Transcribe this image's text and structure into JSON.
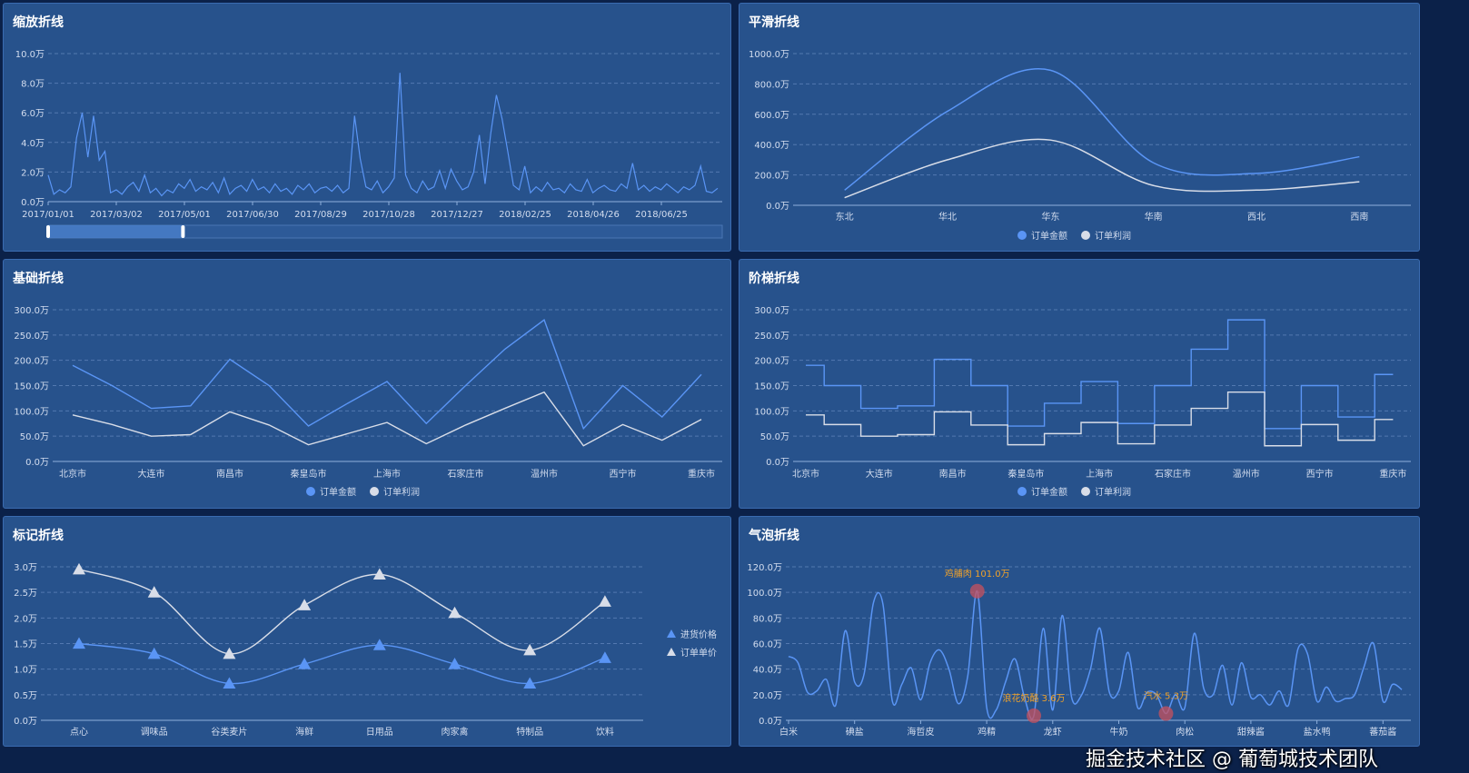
{
  "colors": {
    "primary": "#5a95f5",
    "secondary": "#d8dde8",
    "mark_point": "#c8525e",
    "mark_label": "#f0a22a",
    "panel": "#27528c",
    "background": "#0b2149"
  },
  "watermark": "掘金技术社区 @ 葡萄城技术团队",
  "chart_data": [
    {
      "type": "line",
      "title": "缩放折线",
      "yticks": [
        "0.0万",
        "2.0万",
        "4.0万",
        "6.0万",
        "8.0万",
        "10.0万"
      ],
      "ylim": [
        0,
        10
      ],
      "unit": "万",
      "x_start": "2017/01/01",
      "x_step_days": 5,
      "xticks": [
        "2017/01/01",
        "2017/03/02",
        "2017/05/01",
        "2017/06/30",
        "2017/08/29",
        "2017/10/28",
        "2017/12/27",
        "2018/02/25",
        "2018/04/26",
        "2018/06/25"
      ],
      "values": [
        1.8,
        0.5,
        0.8,
        0.6,
        1.0,
        4.3,
        6.0,
        3.0,
        5.8,
        2.8,
        3.4,
        0.6,
        0.8,
        0.5,
        1.0,
        1.3,
        0.7,
        1.8,
        0.6,
        0.9,
        0.4,
        0.8,
        0.6,
        1.2,
        0.9,
        1.5,
        0.7,
        1.0,
        0.8,
        1.3,
        0.6,
        1.6,
        0.5,
        0.9,
        1.1,
        0.7,
        1.5,
        0.8,
        1.0,
        0.6,
        1.2,
        0.7,
        0.9,
        0.5,
        1.1,
        0.8,
        1.2,
        0.6,
        0.9,
        1.0,
        0.7,
        1.1,
        0.6,
        0.9,
        5.8,
        2.9,
        1.0,
        0.8,
        1.4,
        0.6,
        1.0,
        1.6,
        8.7,
        1.8,
        0.9,
        0.6,
        1.4,
        0.8,
        1.0,
        2.1,
        0.9,
        2.2,
        1.4,
        0.8,
        1.0,
        2.0,
        4.5,
        1.2,
        4.6,
        7.2,
        5.6,
        3.4,
        1.1,
        0.8,
        2.4,
        0.6,
        1.0,
        0.7,
        1.3,
        0.8,
        0.9,
        0.6,
        1.2,
        0.8,
        0.7,
        1.5,
        0.6,
        0.9,
        1.1,
        0.8,
        0.7,
        1.2,
        0.9,
        2.6,
        0.8,
        1.1,
        0.7,
        1.0,
        0.8,
        1.2,
        0.9,
        0.6,
        1.0,
        0.8,
        1.1,
        2.4,
        0.7,
        0.6,
        0.9
      ],
      "data_zoom": {
        "start_percent": 0,
        "end_percent": 20
      },
      "grid": true
    },
    {
      "type": "line",
      "title": "平滑折线",
      "smooth": true,
      "yticks": [
        "0.0万",
        "200.0万",
        "400.0万",
        "600.0万",
        "800.0万",
        "1000.0万"
      ],
      "ylim": [
        0,
        1000
      ],
      "categories": [
        "东北",
        "华北",
        "华东",
        "华南",
        "西北",
        "西南"
      ],
      "series": [
        {
          "name": "订单金额",
          "values": [
            100,
            620,
            890,
            280,
            210,
            320
          ]
        },
        {
          "name": "订单利润",
          "values": [
            50,
            300,
            430,
            130,
            100,
            155
          ]
        }
      ],
      "legend": "bottom",
      "grid": true
    },
    {
      "type": "line",
      "title": "基础折线",
      "yticks": [
        "0.0万",
        "50.0万",
        "100.0万",
        "150.0万",
        "200.0万",
        "250.0万",
        "300.0万"
      ],
      "ylim": [
        0,
        300
      ],
      "categories": [
        "北京市",
        "",
        "大连市",
        "",
        "南昌市",
        "",
        "秦皇岛市",
        "",
        "上海市",
        "",
        "石家庄市",
        "",
        "温州市",
        "",
        "西宁市",
        "",
        "重庆市"
      ],
      "series": [
        {
          "name": "订单金额",
          "values": [
            190,
            150,
            105,
            110,
            202,
            150,
            70,
            115,
            158,
            75,
            150,
            222,
            280,
            65,
            150,
            88,
            172
          ]
        },
        {
          "name": "订单利润",
          "values": [
            92,
            73,
            50,
            53,
            98,
            72,
            33,
            55,
            77,
            35,
            72,
            105,
            137,
            31,
            73,
            42,
            83
          ]
        }
      ],
      "legend": "bottom",
      "grid": true
    },
    {
      "type": "line",
      "title": "阶梯折线",
      "step": "middle",
      "yticks": [
        "0.0万",
        "50.0万",
        "100.0万",
        "150.0万",
        "200.0万",
        "250.0万",
        "300.0万"
      ],
      "ylim": [
        0,
        300
      ],
      "categories": [
        "北京市",
        "",
        "大连市",
        "",
        "南昌市",
        "",
        "秦皇岛市",
        "",
        "上海市",
        "",
        "石家庄市",
        "",
        "温州市",
        "",
        "西宁市",
        "",
        "重庆市"
      ],
      "series": [
        {
          "name": "订单金额",
          "values": [
            190,
            150,
            105,
            110,
            202,
            150,
            70,
            115,
            158,
            75,
            150,
            222,
            280,
            65,
            150,
            88,
            172
          ]
        },
        {
          "name": "订单利润",
          "values": [
            92,
            73,
            50,
            53,
            98,
            72,
            33,
            55,
            77,
            35,
            72,
            105,
            137,
            31,
            73,
            42,
            83
          ]
        }
      ],
      "legend": "bottom",
      "grid": true
    },
    {
      "type": "line",
      "title": "标记折线",
      "smooth": true,
      "marker": "triangle",
      "yticks": [
        "0.0万",
        "0.5万",
        "1.0万",
        "1.5万",
        "2.0万",
        "2.5万",
        "3.0万"
      ],
      "ylim": [
        0,
        3
      ],
      "categories": [
        "点心",
        "调味品",
        "谷类麦片",
        "海鲜",
        "日用品",
        "肉家禽",
        "特制品",
        "饮料"
      ],
      "series": [
        {
          "name": "进货价格",
          "values": [
            1.5,
            1.3,
            0.72,
            1.1,
            1.47,
            1.1,
            0.72,
            1.22
          ]
        },
        {
          "name": "订单单价",
          "values": [
            2.95,
            2.5,
            1.3,
            2.25,
            2.85,
            2.1,
            1.37,
            2.32
          ]
        }
      ],
      "legend": "right",
      "grid": true
    },
    {
      "type": "line",
      "title": "气泡折线",
      "smooth": true,
      "yticks": [
        "0.0万",
        "20.0万",
        "40.0万",
        "60.0万",
        "80.0万",
        "100.0万",
        "120.0万"
      ],
      "ylim": [
        0,
        120
      ],
      "axis_labels": [
        "白米",
        "碘盐",
        "海哲皮",
        "鸡精",
        "龙虾",
        "牛奶",
        "肉松",
        "甜辣酱",
        "盐水鸭",
        "蕃茄酱"
      ],
      "values": [
        50,
        45,
        22,
        23,
        32,
        12,
        70,
        30,
        36,
        92,
        91,
        15,
        28,
        41,
        16,
        45,
        55,
        40,
        13,
        35,
        101,
        10,
        8,
        30,
        48,
        18,
        3.6,
        72,
        8,
        82,
        18,
        19,
        40,
        72,
        22,
        23,
        53,
        10,
        22,
        20,
        5.3,
        20,
        10,
        68,
        25,
        20,
        43,
        12,
        45,
        18,
        20,
        12,
        23,
        12,
        56,
        52,
        15,
        26,
        15,
        17,
        20,
        42,
        60,
        15,
        28,
        24
      ],
      "mark_points": [
        {
          "index": 20,
          "label": "鸡脯肉 101.0万"
        },
        {
          "index": 26,
          "label": "浪花奶酪 3.6万"
        },
        {
          "index": 40,
          "label": "汽水 5.3万"
        }
      ],
      "grid": true
    }
  ]
}
